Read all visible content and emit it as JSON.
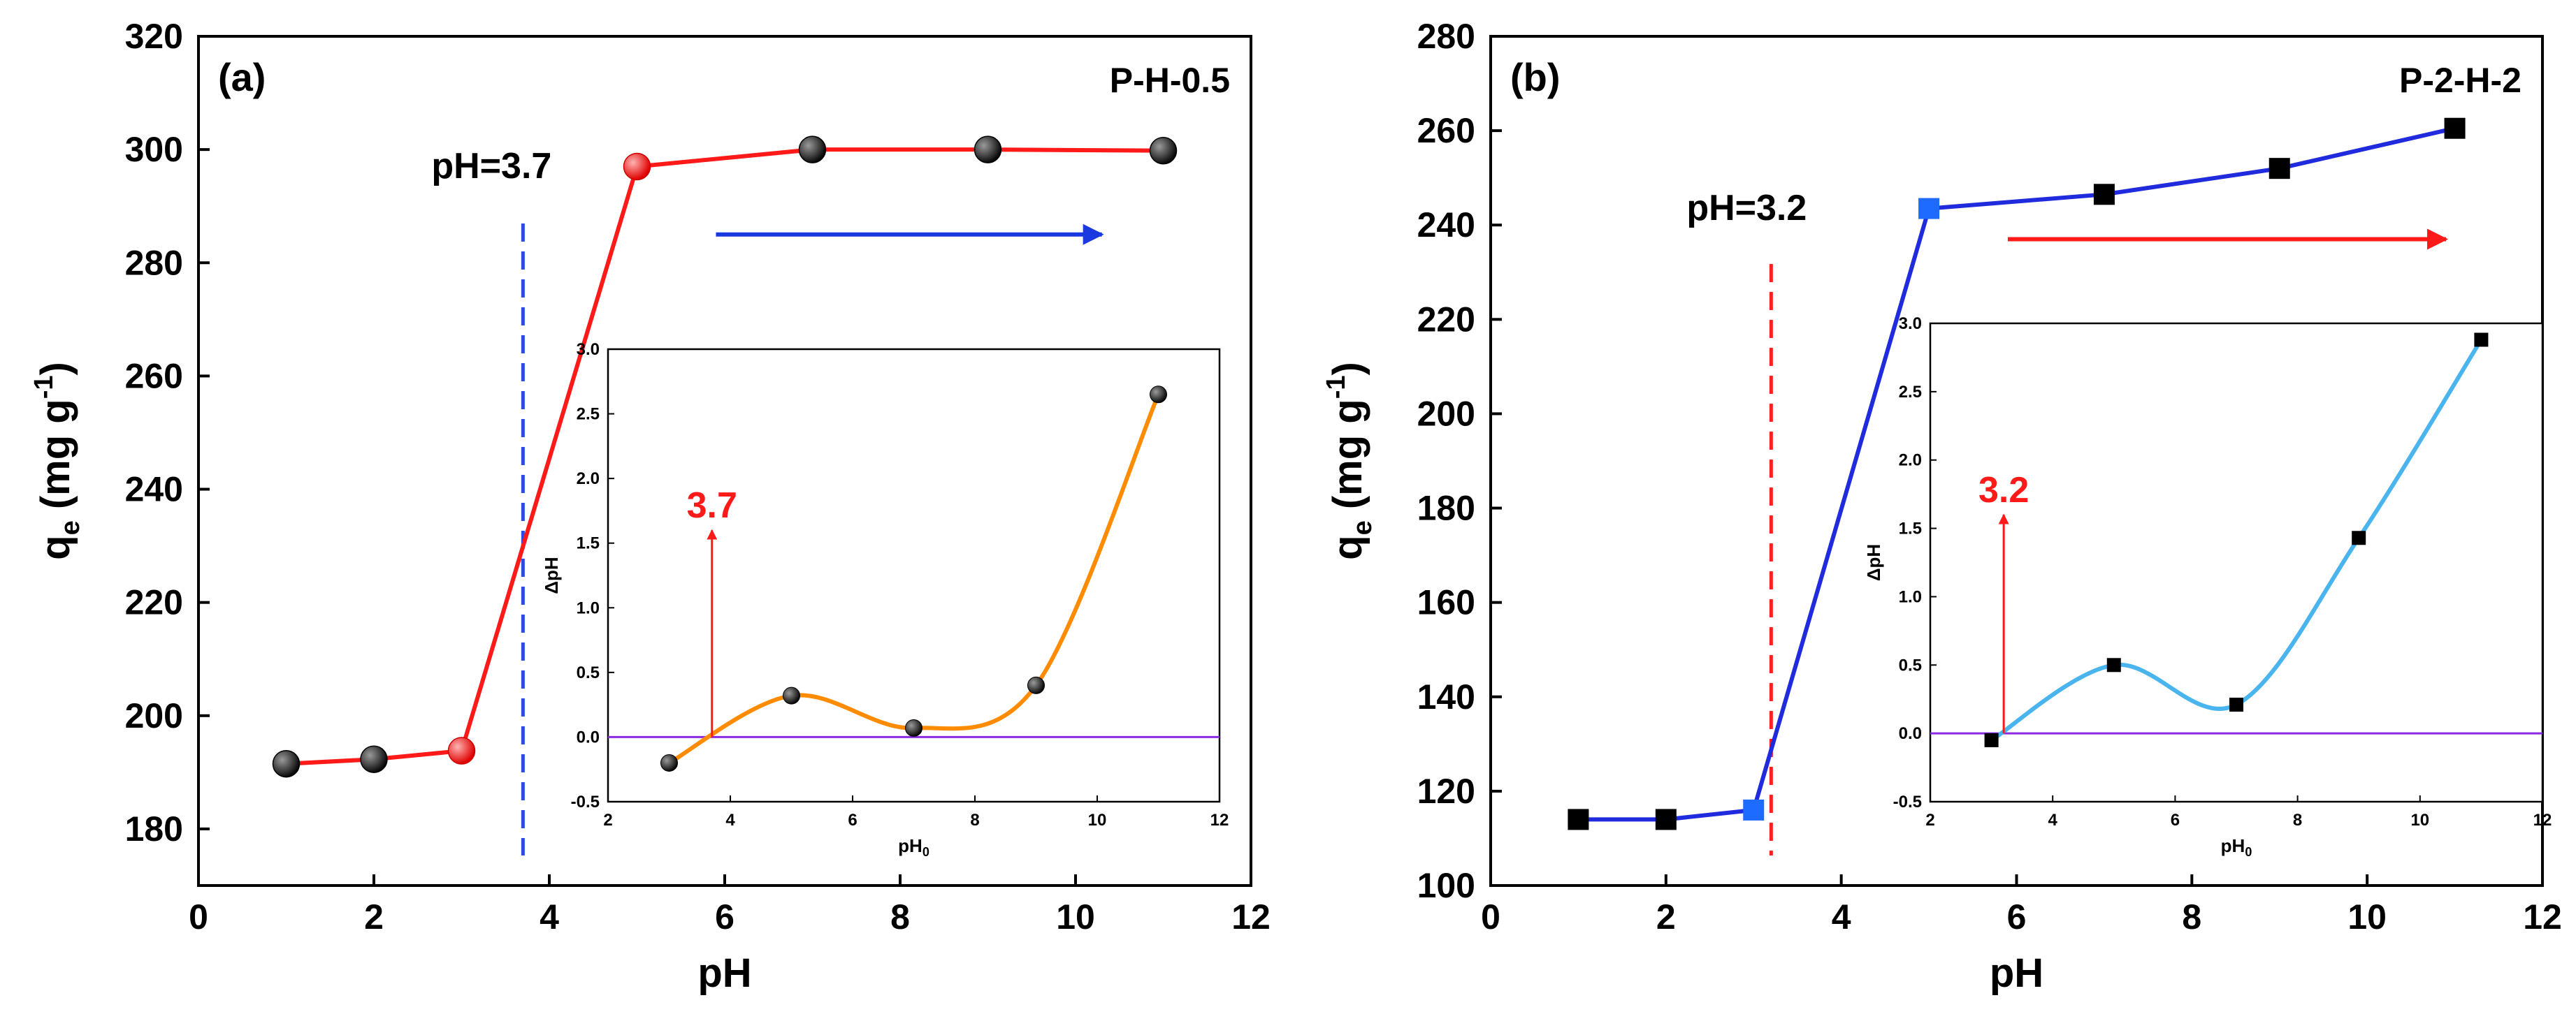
{
  "chart_data": [
    {
      "id": "a",
      "type": "line",
      "panel_label": "(a)",
      "sample_label": "P-H-0.5",
      "xlabel": "pH",
      "ylabel_main": "q",
      "ylabel_sub": "e",
      "ylabel_unit": "(mg g",
      "ylabel_sup": "-1",
      "ylabel_close": ")",
      "xlim": [
        0,
        12
      ],
      "ylim": [
        170,
        320
      ],
      "xticks": [
        0,
        2,
        4,
        6,
        8,
        10,
        12
      ],
      "yticks": [
        180,
        200,
        220,
        240,
        260,
        280,
        300,
        320
      ],
      "line_color": "#ff1a1a",
      "marker": "sphere",
      "marker_color": "#1a1a1a",
      "highlight_color": "#ff2020",
      "highlight_index": [
        2,
        3
      ],
      "points": [
        {
          "x": 1,
          "y": 191.5
        },
        {
          "x": 2,
          "y": 192.3
        },
        {
          "x": 3,
          "y": 193.8
        },
        {
          "x": 5,
          "y": 297
        },
        {
          "x": 7,
          "y": 300
        },
        {
          "x": 9,
          "y": 300
        },
        {
          "x": 11,
          "y": 299.8
        }
      ],
      "pzc_line": {
        "x": 3.7,
        "color": "#2a4de0",
        "text": "pH=3.7"
      },
      "arrow": {
        "x_from": 5.9,
        "x_to": 10.3,
        "y": 285,
        "color": "#1a3ae0"
      },
      "inset": {
        "xlabel": "pH",
        "xlabel_sub": "0",
        "ylabel": "ΔpH",
        "xlim": [
          2,
          12
        ],
        "ylim": [
          -0.5,
          3.0
        ],
        "xticks": [
          2,
          4,
          6,
          8,
          10,
          12
        ],
        "yticks": [
          -0.5,
          0.0,
          0.5,
          1.0,
          1.5,
          2.0,
          2.5,
          3.0
        ],
        "curve_color": "#ff8c00",
        "zero_line_color": "#8a2be2",
        "marker": "sphere",
        "points": [
          {
            "x": 3,
            "y": -0.2
          },
          {
            "x": 5,
            "y": 0.32
          },
          {
            "x": 7,
            "y": 0.07
          },
          {
            "x": 9,
            "y": 0.4
          },
          {
            "x": 11,
            "y": 2.65
          }
        ],
        "pzc": {
          "x": 3.7,
          "text": "3.7",
          "color": "#ff1a1a",
          "arrow_top": 1.6
        }
      }
    },
    {
      "id": "b",
      "type": "line",
      "panel_label": "(b)",
      "sample_label": "P-2-H-2",
      "xlabel": "pH",
      "ylabel_main": "q",
      "ylabel_sub": "e",
      "ylabel_unit": "(mg g",
      "ylabel_sup": "-1",
      "ylabel_close": ")",
      "xlim": [
        0,
        12
      ],
      "ylim": [
        100,
        280
      ],
      "xticks": [
        0,
        2,
        4,
        6,
        8,
        10,
        12
      ],
      "yticks": [
        100,
        120,
        140,
        160,
        180,
        200,
        220,
        240,
        260,
        280
      ],
      "line_color": "#1f2bdc",
      "marker": "square",
      "marker_color": "#000000",
      "highlight_color": "#1e6bff",
      "highlight_index": [
        2,
        3
      ],
      "points": [
        {
          "x": 1,
          "y": 114
        },
        {
          "x": 2,
          "y": 114
        },
        {
          "x": 3,
          "y": 116
        },
        {
          "x": 5,
          "y": 243.5
        },
        {
          "x": 7,
          "y": 246.5
        },
        {
          "x": 9,
          "y": 252
        },
        {
          "x": 11,
          "y": 260.5
        }
      ],
      "pzc_line": {
        "x": 3.2,
        "color": "#ff2020",
        "text": "pH=3.2"
      },
      "arrow": {
        "x_from": 5.9,
        "x_to": 10.9,
        "y": 237,
        "color": "#ff1a1a"
      },
      "inset": {
        "xlabel": "pH",
        "xlabel_sub": "0",
        "ylabel": "ΔpH",
        "xlim": [
          2,
          12
        ],
        "ylim": [
          -0.5,
          3.0
        ],
        "xticks": [
          2,
          4,
          6,
          8,
          10,
          12
        ],
        "yticks": [
          -0.5,
          0.0,
          0.5,
          1.0,
          1.5,
          2.0,
          2.5,
          3.0
        ],
        "curve_color": "#4ab4ee",
        "zero_line_color": "#8a2be2",
        "marker": "square",
        "points": [
          {
            "x": 3,
            "y": -0.05
          },
          {
            "x": 5,
            "y": 0.5
          },
          {
            "x": 7,
            "y": 0.21
          },
          {
            "x": 9,
            "y": 1.43
          },
          {
            "x": 11,
            "y": 2.88
          }
        ],
        "pzc": {
          "x": 3.2,
          "text": "3.2",
          "color": "#ff1a1a",
          "arrow_top": 1.6
        }
      }
    }
  ]
}
